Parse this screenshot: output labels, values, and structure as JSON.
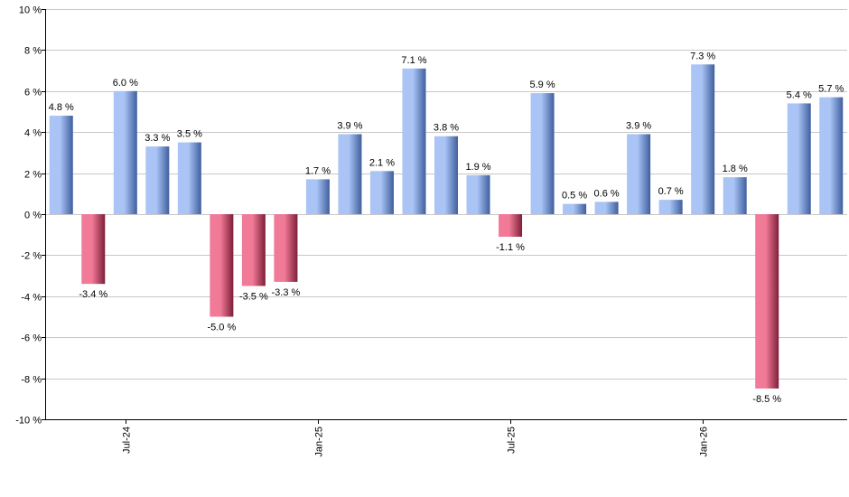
{
  "chart_data": {
    "type": "bar",
    "title": "",
    "xlabel": "",
    "ylabel": "",
    "ylim": [
      -10,
      10
    ],
    "y_ticks": [
      "10 %",
      "8 %",
      "6 %",
      "4 %",
      "2 %",
      "0 %",
      "-2 %",
      "-4 %",
      "-6 %",
      "-8 %",
      "-10 %"
    ],
    "y_tick_values": [
      10,
      8,
      6,
      4,
      2,
      0,
      -2,
      -4,
      -6,
      -8,
      -10
    ],
    "x_ticks": [
      {
        "label": "Jul-24",
        "index": 2
      },
      {
        "label": "Jan-25",
        "index": 8
      },
      {
        "label": "Jul-25",
        "index": 14
      },
      {
        "label": "Jan-26",
        "index": 20
      }
    ],
    "values": [
      4.8,
      -3.4,
      6.0,
      3.3,
      3.5,
      -5.0,
      -3.5,
      -3.3,
      1.7,
      3.9,
      2.1,
      7.1,
      3.8,
      1.9,
      -1.1,
      5.9,
      0.5,
      0.6,
      3.9,
      0.7,
      7.3,
      1.8,
      -8.5,
      5.4,
      5.7
    ],
    "value_labels": [
      "4.8 %",
      "-3.4 %",
      "6.0 %",
      "3.3 %",
      "3.5 %",
      "-5.0 %",
      "-3.5 %",
      "-3.3 %",
      "1.7 %",
      "3.9 %",
      "2.1 %",
      "7.1 %",
      "3.8 %",
      "1.9 %",
      "-1.1 %",
      "5.9 %",
      "0.5 %",
      "0.6 %",
      "3.9 %",
      "0.7 %",
      "7.3 %",
      "1.8 %",
      "-8.5 %",
      "5.4 %",
      "5.7 %"
    ],
    "grid": true,
    "colors": {
      "positive_light": "#a9c4f5",
      "positive_dark": "#3f5f9e",
      "negative_light": "#f07a98",
      "negative_dark": "#7e1f38",
      "grid": "#c8c8c8",
      "axis": "#000000"
    }
  }
}
